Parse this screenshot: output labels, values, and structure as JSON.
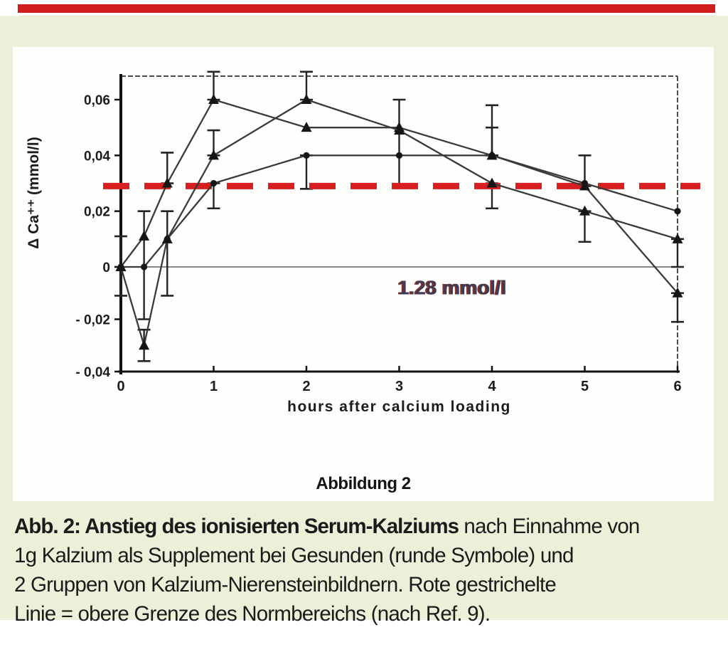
{
  "page": {
    "top_bar_color": "#cf1d1d",
    "panel_color": "#edf0d8",
    "card_color": "#fefefc"
  },
  "figure_label": "Abbildung 2",
  "caption": {
    "line1_bold": "Abb. 2: Anstieg des ionisierten Serum-Kalziums",
    "line1_rest": " nach Einnahme von",
    "line2": "1g Kalzium als Supplement bei Gesunden (runde Symbole) und",
    "line3": "2 Gruppen von Kalzium-Nierensteinbildnern. Rote gestrichelte",
    "line4": "Linie = obere Grenze des Normbereichs (nach Ref. 9)."
  },
  "chart_data": {
    "type": "line",
    "title": "",
    "xlabel": "hours after calcium loading",
    "ylabel": "Δ Ca⁺⁺ (mmol/l)",
    "xlim": [
      0,
      6
    ],
    "ylim": [
      -0.04,
      0.068
    ],
    "grid": false,
    "legend": "none",
    "x_ticks": [
      0,
      1,
      2,
      3,
      4,
      5,
      6
    ],
    "y_ticks": [
      {
        "v": 0.06,
        "label": "0,06"
      },
      {
        "v": 0.04,
        "label": "0,04"
      },
      {
        "v": 0.02,
        "label": "0,02"
      },
      {
        "v": 0,
        "label": "0"
      },
      {
        "v": -0.02,
        "label": "- 0,02"
      },
      {
        "v": -0.04,
        "label": "- 0,04"
      }
    ],
    "reference_line": {
      "value": 0.029,
      "color": "#d71f1f",
      "style": "dashed",
      "meaning": "obere Grenze des Normbereichs"
    },
    "annotation": {
      "text": "1.28 mmol/l",
      "x": 3.0,
      "y": -0.008
    },
    "series": [
      {
        "name": "Gesunde (runde Symbole)",
        "marker": "circle",
        "x": [
          0,
          0.25,
          0.5,
          1,
          2,
          3,
          4,
          5,
          6
        ],
        "y": [
          0,
          0,
          0.01,
          0.03,
          0.04,
          0.04,
          0.04,
          0.03,
          0.02
        ]
      },
      {
        "name": "Kalzium-Nierensteinbildner Gruppe 1",
        "marker": "triangle",
        "x": [
          0,
          0.25,
          0.5,
          1,
          2,
          3,
          4,
          5,
          6
        ],
        "y": [
          0,
          0.011,
          0.03,
          0.06,
          0.05,
          0.05,
          0.04,
          0.029,
          -0.01
        ]
      },
      {
        "name": "Kalzium-Nierensteinbildner Gruppe 2",
        "marker": "triangle",
        "x": [
          0,
          0.25,
          0.5,
          1,
          2,
          3,
          4,
          5,
          6
        ],
        "y": [
          0,
          -0.03,
          0.01,
          0.04,
          0.06,
          0.049,
          0.03,
          0.02,
          0.01
        ]
      }
    ],
    "error_bars": [
      {
        "x": 0,
        "from": -0.011,
        "to": 0.011
      },
      {
        "x": 0.25,
        "from": -0.02,
        "to": 0.02
      },
      {
        "x": 0.25,
        "from": -0.036,
        "to": -0.024
      },
      {
        "x": 0.5,
        "from": -0.011,
        "to": 0.02
      },
      {
        "x": 0.5,
        "from": 0.03,
        "to": 0.041
      },
      {
        "x": 1,
        "from": 0.06,
        "to": 0.07
      },
      {
        "x": 1,
        "from": 0.04,
        "to": 0.049
      },
      {
        "x": 1,
        "from": 0.021,
        "to": 0.03
      },
      {
        "x": 2,
        "from": 0.06,
        "to": 0.07
      },
      {
        "x": 2,
        "from": 0.028,
        "to": 0.04
      },
      {
        "x": 3,
        "from": 0.029,
        "to": 0.06
      },
      {
        "x": 4,
        "from": 0.04,
        "to": 0.058
      },
      {
        "x": 4,
        "from": 0.04,
        "to": 0.05
      },
      {
        "x": 4,
        "from": 0.021,
        "to": 0.03
      },
      {
        "x": 5,
        "from": 0.029,
        "to": 0.04
      },
      {
        "x": 5,
        "from": 0.009,
        "to": 0.02
      },
      {
        "x": 6,
        "from": 0,
        "to": 0.01
      },
      {
        "x": 6,
        "from": -0.021,
        "to": -0.01
      }
    ]
  }
}
